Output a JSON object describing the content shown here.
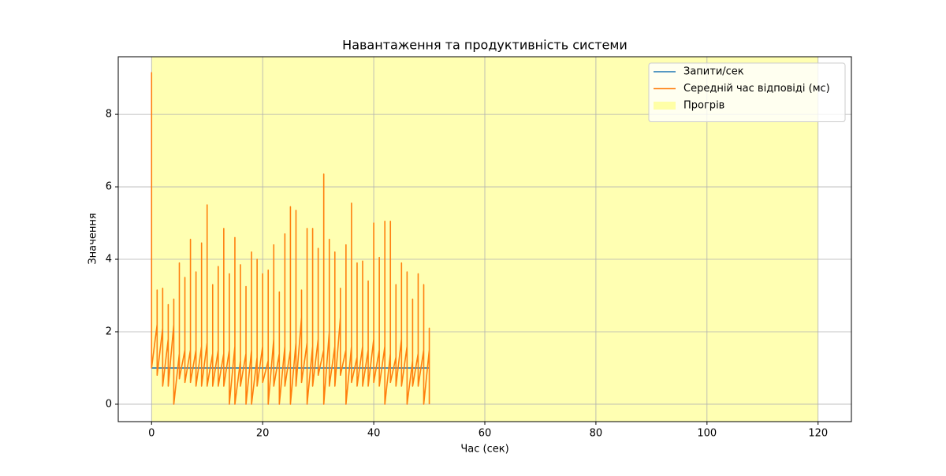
{
  "chart_data": {
    "type": "line",
    "title": "Навантаження та продуктивність системи",
    "xlabel": "Час (сек)",
    "ylabel": "Значення",
    "xlim": [
      -6,
      126
    ],
    "ylim": [
      -0.48,
      9.59
    ],
    "xticks": [
      0,
      20,
      40,
      60,
      80,
      100,
      120
    ],
    "yticks": [
      0,
      2,
      4,
      6,
      8
    ],
    "grid": true,
    "legend": "upper right",
    "spans": [
      {
        "name": "Прогрів",
        "color": "#ffff00",
        "opacity": 0.3,
        "xmin": 0,
        "xmax": 120
      }
    ],
    "series": [
      {
        "name": "Запити/сек",
        "color": "#1f77b4",
        "x": [
          0,
          1,
          2,
          3,
          4,
          5,
          6,
          7,
          8,
          9,
          10,
          11,
          12,
          13,
          14,
          15,
          16,
          17,
          18,
          19,
          20,
          21,
          22,
          23,
          24,
          25,
          26,
          27,
          28,
          29,
          30,
          31,
          32,
          33,
          34,
          35,
          36,
          37,
          38,
          39,
          40,
          41,
          42,
          43,
          44,
          45,
          46,
          47,
          48,
          49,
          50
        ],
        "values": [
          1,
          1,
          1,
          1,
          1,
          1,
          1,
          1,
          1,
          1,
          1,
          1,
          1,
          1,
          1,
          1,
          1,
          1,
          1,
          1,
          1,
          1,
          1,
          1,
          1,
          1,
          1,
          1,
          1,
          1,
          1,
          1,
          1,
          1,
          1,
          1,
          1,
          1,
          1,
          1,
          1,
          1,
          1,
          1,
          1,
          1,
          1,
          1,
          1,
          1,
          1
        ]
      },
      {
        "name": "Середній час відповіді (мс)",
        "color": "#ff7f0e",
        "x": [
          0,
          0,
          0,
          1,
          1,
          1,
          2,
          2,
          2,
          3,
          3,
          3,
          4,
          4,
          4,
          5,
          5,
          5,
          6,
          6,
          6,
          7,
          7,
          7,
          8,
          8,
          8,
          9,
          9,
          9,
          10,
          10,
          10,
          11,
          11,
          11,
          12,
          12,
          12,
          13,
          13,
          13,
          14,
          14,
          14,
          15,
          15,
          15,
          16,
          16,
          16,
          17,
          17,
          17,
          18,
          18,
          18,
          19,
          19,
          19,
          20,
          20,
          20,
          21,
          21,
          21,
          22,
          22,
          22,
          23,
          23,
          23,
          24,
          24,
          24,
          25,
          25,
          25,
          26,
          26,
          26,
          27,
          27,
          27,
          28,
          28,
          28,
          29,
          29,
          29,
          30,
          30,
          30,
          31,
          31,
          31,
          32,
          32,
          32,
          33,
          33,
          33,
          34,
          34,
          34,
          35,
          35,
          35,
          36,
          36,
          36,
          37,
          37,
          37,
          38,
          38,
          38,
          39,
          39,
          39,
          40,
          40,
          40,
          41,
          41,
          41,
          42,
          42,
          42,
          43,
          43,
          43,
          44,
          44,
          44,
          45,
          45,
          45,
          46,
          46,
          46,
          47,
          47,
          47,
          48,
          48,
          48,
          49,
          49,
          49,
          50,
          50,
          50
        ],
        "values": [
          1.0,
          9.15,
          1.0,
          2.2,
          3.15,
          0.8,
          2.1,
          3.2,
          0.5,
          1.8,
          2.75,
          0.5,
          2.2,
          2.9,
          0,
          1.4,
          3.9,
          0.7,
          1.5,
          3.5,
          0.6,
          1.5,
          4.55,
          0.6,
          1.5,
          3.65,
          0.5,
          1.6,
          4.45,
          0.5,
          1.7,
          5.5,
          0.5,
          1.4,
          3.3,
          0.5,
          1.5,
          3.8,
          0.5,
          1.4,
          4.85,
          0.5,
          1.5,
          3.6,
          0,
          1.6,
          4.6,
          0,
          1.2,
          3.85,
          0.5,
          1.4,
          3.25,
          0,
          1.5,
          4.2,
          0,
          1.3,
          4.0,
          0.5,
          1.6,
          3.6,
          0.6,
          1.2,
          3.7,
          0,
          1.8,
          4.4,
          0.5,
          1.4,
          3.1,
          0,
          1.6,
          4.7,
          0.5,
          1.5,
          5.45,
          0,
          1.7,
          5.35,
          0.5,
          2.4,
          3.15,
          0.6,
          1.7,
          4.85,
          0,
          1.6,
          4.85,
          0.5,
          1.8,
          4.3,
          0.8,
          1.5,
          6.35,
          0,
          2.0,
          4.55,
          0.5,
          1.6,
          4.2,
          0.5,
          2.4,
          3.2,
          0.8,
          1.5,
          4.4,
          0,
          1.6,
          5.55,
          0.6,
          1.3,
          3.9,
          0.5,
          1.6,
          3.95,
          0.5,
          1.5,
          3.4,
          0.5,
          1.8,
          5.0,
          0.6,
          1.5,
          4.05,
          0.5,
          1.6,
          5.05,
          0,
          1.4,
          5.05,
          0.6,
          1.3,
          3.3,
          0.5,
          1.8,
          3.9,
          0.5,
          1.6,
          3.65,
          0,
          1.2,
          2.9,
          0.5,
          1.4,
          3.6,
          0.5,
          1.5,
          3.3,
          0,
          1.5,
          2.1,
          0
        ]
      }
    ]
  }
}
